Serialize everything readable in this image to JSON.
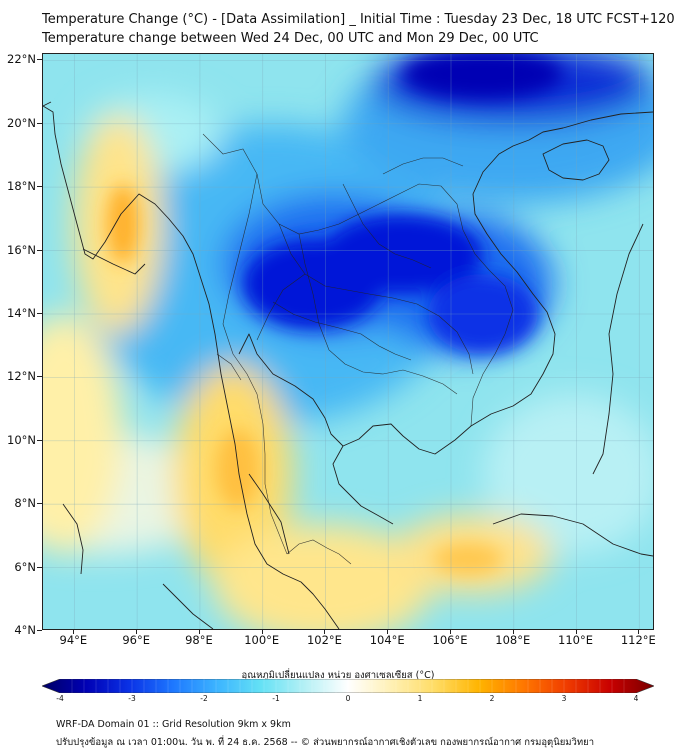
{
  "header": {
    "title_line1": "Temperature Change (°C) - [Data Assimilation] _ Initial Time : Tuesday 23 Dec, 18 UTC FCST+120",
    "title_line2": "Temperature change between Wed 24 Dec, 00 UTC and Mon 29 Dec, 00 UTC"
  },
  "map": {
    "lat_ticks": [
      "22°N",
      "20°N",
      "18°N",
      "16°N",
      "14°N",
      "12°N",
      "10°N",
      "8°N",
      "6°N",
      "4°N"
    ],
    "lon_ticks": [
      "94°E",
      "96°E",
      "98°E",
      "100°E",
      "102°E",
      "104°E",
      "106°E",
      "108°E",
      "110°E",
      "112°E"
    ],
    "lat_values": [
      22,
      20,
      18,
      16,
      14,
      12,
      10,
      8,
      6,
      4
    ],
    "lon_values": [
      94,
      96,
      98,
      100,
      102,
      104,
      106,
      108,
      110,
      112
    ],
    "lat_range": [
      4,
      22.2
    ],
    "lon_range": [
      93,
      112.5
    ],
    "background_color": "#8fe4ee"
  },
  "colorbar": {
    "label": "อุณหภูมิเปลี่ยนแปลง หน่วย องศาเซลเซียส (°C)",
    "ticks": [
      "-4",
      "-3",
      "-2",
      "-1",
      "0",
      "1",
      "2",
      "3",
      "4"
    ],
    "tick_values": [
      -4,
      -3,
      -2,
      -1,
      0,
      1,
      2,
      3,
      4
    ],
    "range": [
      -4,
      4
    ],
    "colors": [
      "#000064",
      "#0000b4",
      "#0a32e6",
      "#1e78ff",
      "#3cb4ff",
      "#64e1f5",
      "#b4f0f5",
      "#ffffff",
      "#fff0b4",
      "#ffdc64",
      "#ffb400",
      "#ff7800",
      "#f03c00",
      "#c80000",
      "#780000"
    ]
  },
  "footer": {
    "line1": "WRF-DA Domain 01 :: Grid Resolution 9km x 9km",
    "line2": "ปรับปรุงข้อมูล ณ เวลา 01:00น. วัน พ. ที่ 24 ธ.ค. 2568 -- © ส่วนพยากรณ์อากาศเชิงตัวเลข กองพยากรณ์อากาศ กรมอุตุนิยมวิทยา"
  }
}
